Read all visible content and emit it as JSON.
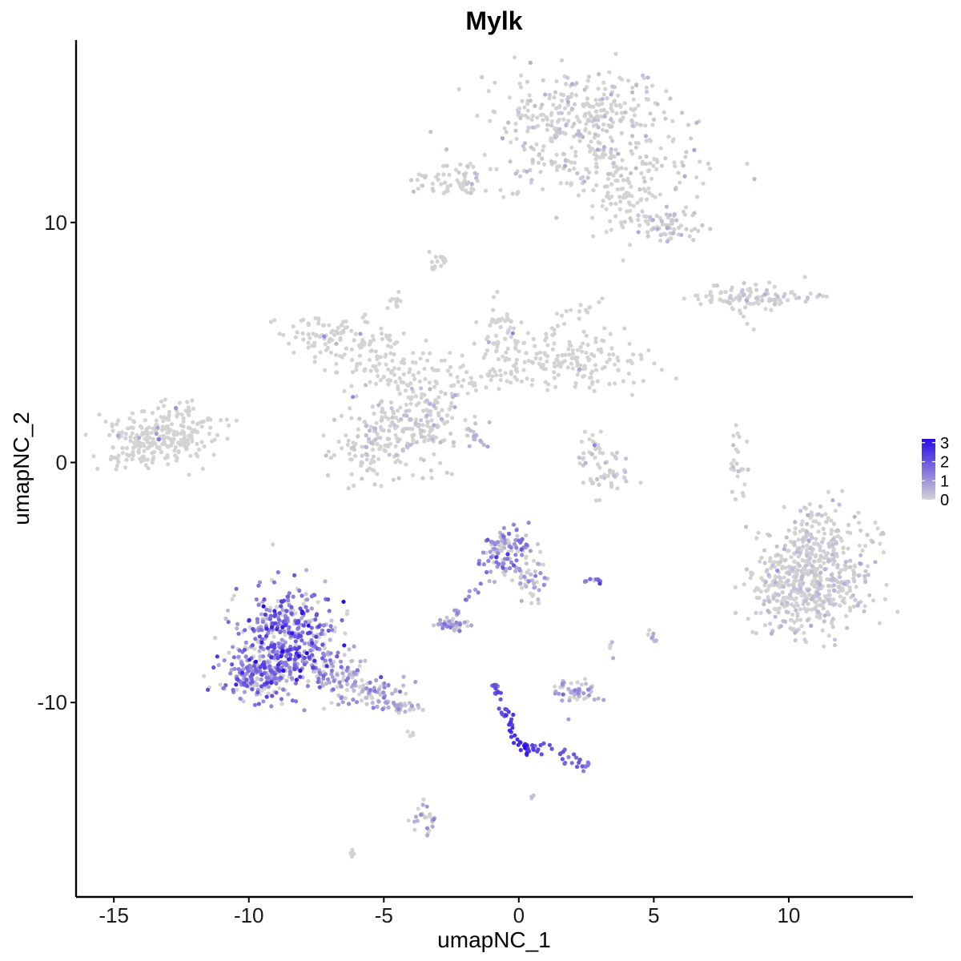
{
  "chart_data": {
    "type": "scatter",
    "title": "Mylk",
    "xlabel": "umapNC_1",
    "ylabel": "umapNC_2",
    "xlim": [
      -16.4,
      14.6
    ],
    "ylim": [
      -18.1,
      17.6
    ],
    "x_ticks": [
      -15,
      -10,
      -5,
      0,
      5,
      10
    ],
    "y_ticks": [
      -10,
      0,
      10
    ],
    "x_tick_labels": [
      "-15",
      "-10",
      "-5",
      "0",
      "5",
      "10"
    ],
    "y_tick_labels": [
      "-10",
      "0",
      "10"
    ],
    "grid": false,
    "legend_position": "right",
    "color_scale": {
      "low": "#d3d3d3",
      "high": "#2a0bea",
      "min": 0,
      "max": 3.2,
      "breaks": [
        0,
        1,
        2,
        3
      ],
      "break_labels": [
        "0",
        "1",
        "2",
        "3"
      ]
    },
    "clusters": [
      {
        "cx": -13.5,
        "cy": 0.9,
        "sx": 1.1,
        "sy": 0.55,
        "n": 220,
        "expr": 0.0
      },
      {
        "cx": -12.4,
        "cy": 1.6,
        "sx": 0.8,
        "sy": 0.5,
        "n": 60,
        "expr": 0.0
      },
      {
        "cx": 2.3,
        "cy": 14.4,
        "sx": 1.5,
        "sy": 0.9,
        "n": 300,
        "expr": 0.02
      },
      {
        "cx": 3.5,
        "cy": 12.3,
        "sx": 2.0,
        "sy": 0.7,
        "n": 160,
        "expr": 0.02
      },
      {
        "cx": 5.4,
        "cy": 9.9,
        "sx": 0.6,
        "sy": 0.4,
        "n": 70,
        "expr": 0.03
      },
      {
        "cx": 4.0,
        "cy": 10.8,
        "sx": 0.7,
        "sy": 0.8,
        "n": 60,
        "expr": 0.0
      },
      {
        "cx": -2.4,
        "cy": 11.8,
        "sx": 0.7,
        "sy": 0.3,
        "n": 45,
        "expr": 0.02
      },
      {
        "cx": 9.2,
        "cy": 6.9,
        "sx": 1.0,
        "sy": 0.25,
        "n": 75,
        "expr": 0.02
      },
      {
        "cx": 7.6,
        "cy": 6.9,
        "sx": 0.8,
        "sy": 0.15,
        "n": 25,
        "expr": 0.0
      },
      {
        "cx": -7.0,
        "cy": 5.4,
        "sx": 0.9,
        "sy": 0.45,
        "n": 80,
        "expr": 0.0
      },
      {
        "cx": -5.3,
        "cy": 4.4,
        "sx": 1.0,
        "sy": 0.6,
        "n": 70,
        "expr": 0.0
      },
      {
        "cx": 2.3,
        "cy": 4.2,
        "sx": 1.3,
        "sy": 0.6,
        "n": 150,
        "expr": 0.0
      },
      {
        "cx": -0.6,
        "cy": 5.3,
        "sx": 0.5,
        "sy": 0.7,
        "n": 60,
        "expr": 0.0
      },
      {
        "cx": -2.5,
        "cy": 3.7,
        "sx": 1.0,
        "sy": 0.5,
        "n": 50,
        "expr": 0.0
      },
      {
        "cx": -4.4,
        "cy": 1.2,
        "sx": 1.0,
        "sy": 0.8,
        "n": 180,
        "expr": 0.03
      },
      {
        "cx": -6.0,
        "cy": 0.6,
        "sx": 0.5,
        "sy": 0.7,
        "n": 50,
        "expr": 0.03
      },
      {
        "cx": -3.2,
        "cy": 2.2,
        "sx": 0.5,
        "sy": 0.6,
        "n": 40,
        "expr": 0.02
      },
      {
        "cx": -4.6,
        "cy": 6.8,
        "sx": 0.15,
        "sy": 0.25,
        "n": 12,
        "expr": 0.0
      },
      {
        "cx": -3.0,
        "cy": 8.5,
        "sx": 0.15,
        "sy": 0.12,
        "n": 10,
        "expr": 0.0
      },
      {
        "cx": -2.0,
        "cy": 1.1,
        "sx": 0.6,
        "sy": 0.3,
        "n": 8,
        "expr": 0.15
      },
      {
        "cx": 3.3,
        "cy": -0.5,
        "sx": 0.5,
        "sy": 0.5,
        "n": 45,
        "expr": 0.03
      },
      {
        "cx": 2.8,
        "cy": 0.6,
        "sx": 0.3,
        "sy": 0.4,
        "n": 20,
        "expr": 0.0
      },
      {
        "cx": 8.1,
        "cy": 0.0,
        "sx": 0.2,
        "sy": 0.7,
        "n": 25,
        "expr": 0.03
      },
      {
        "cx": 11.0,
        "cy": -4.6,
        "sx": 1.0,
        "sy": 1.2,
        "n": 520,
        "expr": 0.02
      },
      {
        "cx": 9.7,
        "cy": -5.2,
        "sx": 0.6,
        "sy": 0.8,
        "n": 90,
        "expr": 0.02
      },
      {
        "cx": -8.6,
        "cy": -7.2,
        "sx": 0.9,
        "sy": 1.0,
        "n": 420,
        "expr": 1.45
      },
      {
        "cx": -9.6,
        "cy": -8.9,
        "sx": 0.7,
        "sy": 0.5,
        "n": 200,
        "expr": 1.4
      },
      {
        "cx": -6.8,
        "cy": -8.9,
        "sx": 0.6,
        "sy": 0.5,
        "n": 90,
        "expr": 0.95
      },
      {
        "cx": -5.4,
        "cy": -9.6,
        "sx": 0.6,
        "sy": 0.3,
        "n": 60,
        "expr": 0.6
      },
      {
        "cx": -4.4,
        "cy": -10.2,
        "sx": 0.35,
        "sy": 0.15,
        "n": 30,
        "expr": 0.3
      },
      {
        "cx": -0.5,
        "cy": -3.7,
        "sx": 0.45,
        "sy": 0.5,
        "n": 110,
        "expr": 1.0
      },
      {
        "cx": 0.5,
        "cy": -4.8,
        "sx": 0.35,
        "sy": 0.5,
        "n": 45,
        "expr": 0.6
      },
      {
        "cx": -2.4,
        "cy": -6.8,
        "sx": 0.35,
        "sy": 0.15,
        "n": 40,
        "expr": 0.7
      },
      {
        "cx": 2.1,
        "cy": -9.5,
        "sx": 0.45,
        "sy": 0.25,
        "n": 55,
        "expr": 0.55
      },
      {
        "cx": 2.8,
        "cy": -4.9,
        "sx": 0.15,
        "sy": 0.08,
        "n": 12,
        "expr": 1.3
      },
      {
        "cx": 5.0,
        "cy": -7.3,
        "sx": 0.1,
        "sy": 0.2,
        "n": 8,
        "expr": 0.5
      },
      {
        "cx": 3.4,
        "cy": -7.8,
        "sx": 0.08,
        "sy": 0.2,
        "n": 5,
        "expr": 0.3
      },
      {
        "cx": -3.5,
        "cy": -14.9,
        "sx": 0.2,
        "sy": 0.35,
        "n": 28,
        "expr": 0.6
      },
      {
        "cx": -6.2,
        "cy": -16.3,
        "sx": 0.08,
        "sy": 0.08,
        "n": 5,
        "expr": 0.0
      },
      {
        "cx": -4.0,
        "cy": -11.3,
        "sx": 0.15,
        "sy": 0.1,
        "n": 4,
        "expr": 0.0
      },
      {
        "cx": 0.5,
        "cy": -13.9,
        "sx": 0.05,
        "sy": 0.05,
        "n": 3,
        "expr": 0.5
      }
    ],
    "paths": [
      {
        "x": [
          -0.9,
          -0.6,
          -0.3,
          0.0,
          0.2
        ],
        "y": [
          -9.1,
          -10.2,
          -11.0,
          -11.7,
          -12.0
        ],
        "n": 45,
        "spread": 0.1,
        "expr_from": 1.8,
        "expr_to": 3.0
      },
      {
        "x": [
          0.2,
          0.9,
          1.6,
          2.3,
          2.6
        ],
        "y": [
          -12.0,
          -11.9,
          -12.2,
          -12.5,
          -12.7
        ],
        "n": 40,
        "spread": 0.12,
        "expr_from": 2.4,
        "expr_to": 1.3
      },
      {
        "x": [
          -1.4,
          -1.9,
          -2.3,
          -2.6
        ],
        "y": [
          -5.1,
          -5.6,
          -6.2,
          -6.8
        ],
        "n": 14,
        "spread": 0.1,
        "expr_from": 1.3,
        "expr_to": 0.9
      },
      {
        "x": [
          -2.0,
          -1.6,
          -1.2
        ],
        "y": [
          1.6,
          1.1,
          0.6
        ],
        "n": 12,
        "spread": 0.07,
        "expr_from": 0.2,
        "expr_to": 0.6
      },
      {
        "x": [
          -2.0,
          -1.0,
          0.0,
          1.0
        ],
        "y": [
          3.2,
          3.6,
          3.9,
          4.1
        ],
        "n": 25,
        "spread": 0.15,
        "expr_from": 0.0,
        "expr_to": 0.0
      },
      {
        "x": [
          -5.8,
          -4.9,
          -4.0,
          -3.5
        ],
        "y": [
          4.6,
          3.6,
          2.8,
          1.8
        ],
        "n": 30,
        "spread": 0.2,
        "expr_from": 0.0,
        "expr_to": 0.0
      },
      {
        "x": [
          -3.0,
          -2.0,
          -1.0,
          0.0
        ],
        "y": [
          11.3,
          11.5,
          11.3,
          11.2
        ],
        "n": 20,
        "spread": 0.12,
        "expr_from": 0.0,
        "expr_to": 0.0
      },
      {
        "x": [
          -3.3,
          -2.9,
          -2.6
        ],
        "y": [
          8.0,
          8.3,
          8.6
        ],
        "n": 8,
        "spread": 0.05,
        "expr_from": 0.0,
        "expr_to": 0.0
      },
      {
        "x": [
          1.0,
          2.0,
          3.2
        ],
        "y": [
          5.5,
          6.2,
          6.8
        ],
        "n": 18,
        "spread": 0.2,
        "expr_from": 0.0,
        "expr_to": 0.0
      },
      {
        "x": [
          7.5,
          8.3,
          8.8
        ],
        "y": [
          6.8,
          6.1,
          5.6
        ],
        "n": 10,
        "spread": 0.08,
        "expr_from": 0.0,
        "expr_to": 0.0
      }
    ]
  }
}
